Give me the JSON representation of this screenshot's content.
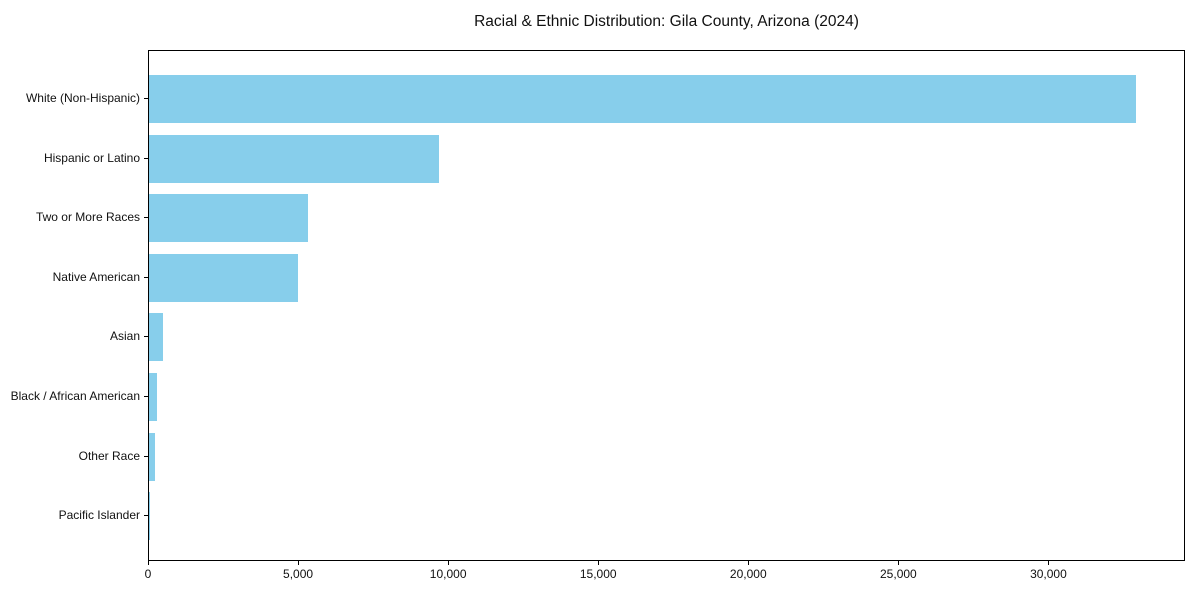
{
  "chart_data": {
    "type": "bar",
    "orientation": "horizontal",
    "title": "Racial & Ethnic Distribution: Gila County, Arizona (2024)",
    "categories": [
      "White (Non-Hispanic)",
      "Hispanic or Latino",
      "Two or More Races",
      "Native American",
      "Asian",
      "Black / African American",
      "Other Race",
      "Pacific Islander"
    ],
    "values": [
      32900,
      9650,
      5300,
      4950,
      450,
      270,
      210,
      30
    ],
    "xlabel": "",
    "ylabel": "",
    "xlim": [
      0,
      34550
    ],
    "x_ticks": {
      "values": [
        0,
        5000,
        10000,
        15000,
        20000,
        25000,
        30000
      ],
      "labels": [
        "0",
        "5,000",
        "10,000",
        "15,000",
        "20,000",
        "25,000",
        "30,000"
      ]
    },
    "bar_color": "#87CEEB",
    "grid": false,
    "legend": null
  }
}
